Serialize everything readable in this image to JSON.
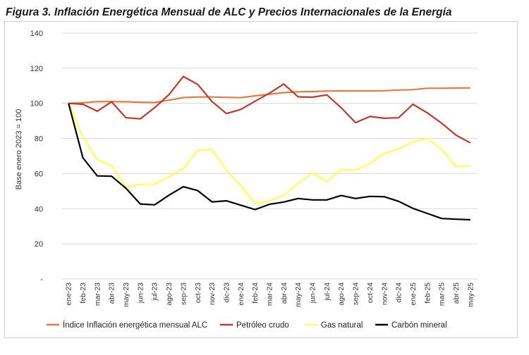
{
  "title": "Figura 3. Inflación Energética Mensual de ALC y Precios Internacionales de la Energía",
  "chart_data": {
    "type": "line",
    "title": "",
    "xlabel": "",
    "ylabel": "Base enero 2023 = 100",
    "ylim": [
      0,
      140
    ],
    "yticks": [
      "-",
      "20",
      "40",
      "60",
      "80",
      "100",
      "120",
      "140"
    ],
    "grid": true,
    "legend_position": "bottom",
    "categories": [
      "ene-23",
      "feb-23",
      "mar-23",
      "abr-23",
      "may-23",
      "jun-23",
      "jul-23",
      "ago-23",
      "sep-23",
      "oct-23",
      "nov-23",
      "dic-23",
      "ene-24",
      "feb-24",
      "mar-24",
      "abr-24",
      "may-24",
      "jun-24",
      "jul-24",
      "ago-24",
      "sep-24",
      "oct-24",
      "nov-24",
      "dic-24",
      "ene-25",
      "feb-25",
      "mar-25",
      "abr-25",
      "may-25"
    ],
    "series": [
      {
        "name": "Índice Inflación energética mensual ALC",
        "color": "#E07B45",
        "values": [
          100,
          100.3,
          101,
          101,
          100.9,
          100.6,
          100.5,
          101.8,
          103.3,
          103.6,
          103.6,
          103.4,
          103.2,
          104.3,
          105.2,
          106.1,
          106.6,
          106.7,
          107.0,
          107.1,
          107.1,
          107.1,
          107.2,
          107.6,
          107.8,
          108.6,
          108.6,
          108.7,
          108.8
        ]
      },
      {
        "name": "Petróleo crudo",
        "color": "#C0392B",
        "values": [
          100,
          99.5,
          95.5,
          100.9,
          91.8,
          91.2,
          97.5,
          105,
          115.3,
          110.8,
          101,
          94.2,
          96.5,
          101.2,
          105.8,
          111,
          103.7,
          103.5,
          104.8,
          97.5,
          89,
          92.5,
          91.5,
          91.8,
          99.5,
          94.6,
          88.7,
          81.9,
          77.5
        ]
      },
      {
        "name": "Gas natural",
        "color": "#FFFF55",
        "values": [
          100,
          81,
          67.7,
          64.5,
          52.2,
          53.8,
          54,
          58.2,
          62.8,
          73.3,
          73.7,
          61.8,
          53,
          43,
          44.5,
          47.5,
          54.5,
          60.3,
          55.5,
          62,
          62,
          65.5,
          71.5,
          74,
          78,
          80,
          73.8,
          64,
          64.3
        ]
      },
      {
        "name": "Carbón mineral",
        "color": "#000000",
        "values": [
          100,
          69,
          58.7,
          58.5,
          51.6,
          42.7,
          42.2,
          47.7,
          52.5,
          50.3,
          43.9,
          44.5,
          42,
          39.5,
          42.5,
          43.8,
          45.8,
          45,
          45,
          47.5,
          45.8,
          47,
          46.8,
          44.2,
          40.2,
          37.3,
          34.4,
          34,
          33.7
        ]
      }
    ]
  }
}
